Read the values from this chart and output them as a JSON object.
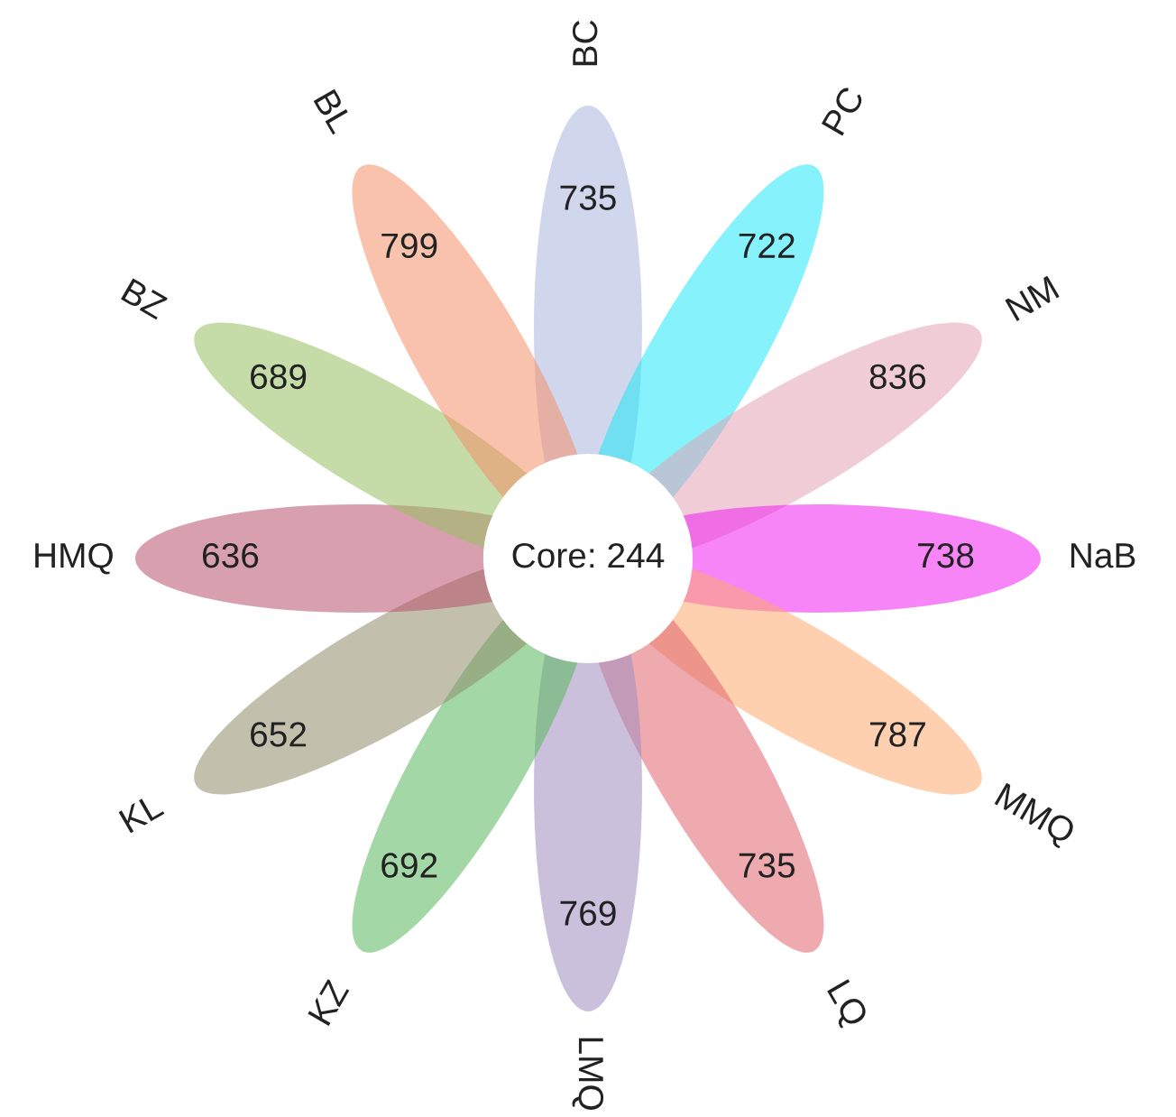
{
  "chart_data": {
    "type": "other",
    "categories": [
      "BC",
      "PC",
      "NM",
      "NaB",
      "MMQ",
      "LQ",
      "LMQ",
      "KZ",
      "KL",
      "HMQ",
      "BZ",
      "BL"
    ],
    "values": [
      735,
      722,
      836,
      738,
      787,
      735,
      769,
      692,
      652,
      636,
      689,
      799
    ],
    "colors": [
      "#a9b4dc",
      "#22e8f8",
      "#e4a2b6",
      "#f020f0",
      "#fdaa6e",
      "#e0646e",
      "#a08cc0",
      "#58b85c",
      "#8f8c68",
      "#b8506e",
      "#98c060",
      "#f4906a"
    ],
    "data_labels": true,
    "annotations": [
      "Core: 244"
    ]
  }
}
